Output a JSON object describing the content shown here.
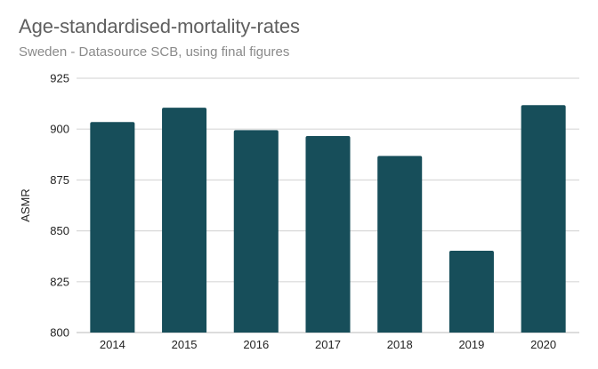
{
  "chart_data": {
    "type": "bar",
    "title": "Age-standardised-mortality-rates",
    "subtitle": "Sweden - Datasource SCB, using final figures",
    "xlabel": "",
    "ylabel": "ASMR",
    "categories": [
      "2014",
      "2015",
      "2016",
      "2017",
      "2018",
      "2019",
      "2020"
    ],
    "values": [
      903.5,
      910.5,
      899.5,
      896.6,
      886.8,
      840.2,
      911.8
    ],
    "ylim": [
      800,
      925
    ],
    "yticks": [
      800,
      825,
      850,
      875,
      900,
      925
    ],
    "ytick_labels": [
      "800",
      "825",
      "850",
      "875",
      "900",
      "925"
    ],
    "grid": true,
    "legend": "none",
    "colors": {
      "bar": "#174e5a",
      "grid": "#d9d9d9",
      "title": "#5f5f5f",
      "subtitle": "#8a8a8a"
    }
  }
}
